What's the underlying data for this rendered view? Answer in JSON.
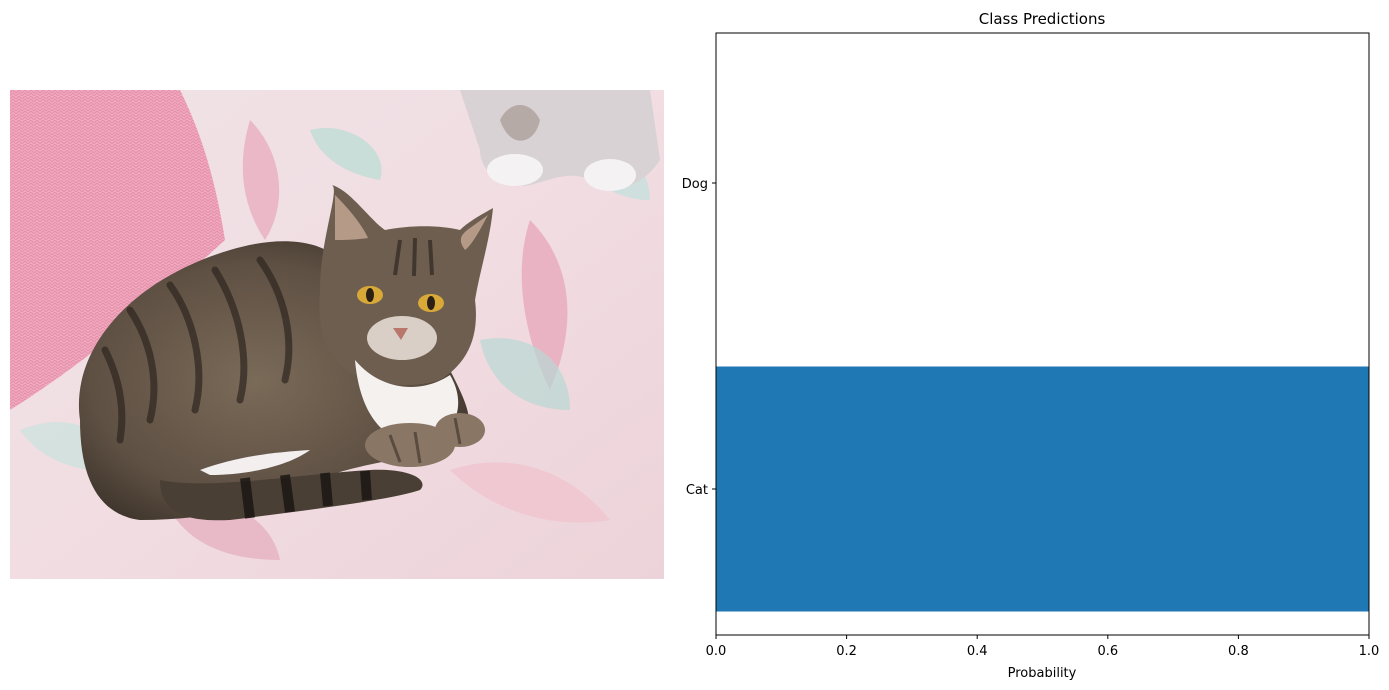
{
  "image_panel": {
    "subject": "tabby cat lying on a pastel floral blanket beside a pink knitted pillow"
  },
  "chart_data": {
    "type": "bar",
    "orientation": "horizontal",
    "title": "Class Predictions",
    "xlabel": "Probability",
    "ylabel": "",
    "categories": [
      "Cat",
      "Dog"
    ],
    "values": [
      1.0,
      0.0
    ],
    "xlim": [
      0,
      1.0
    ],
    "xticks": [
      "0.0",
      "0.2",
      "0.4",
      "0.6",
      "0.8",
      "1.0"
    ],
    "grid": false,
    "bar_color": "#1f77b4"
  }
}
